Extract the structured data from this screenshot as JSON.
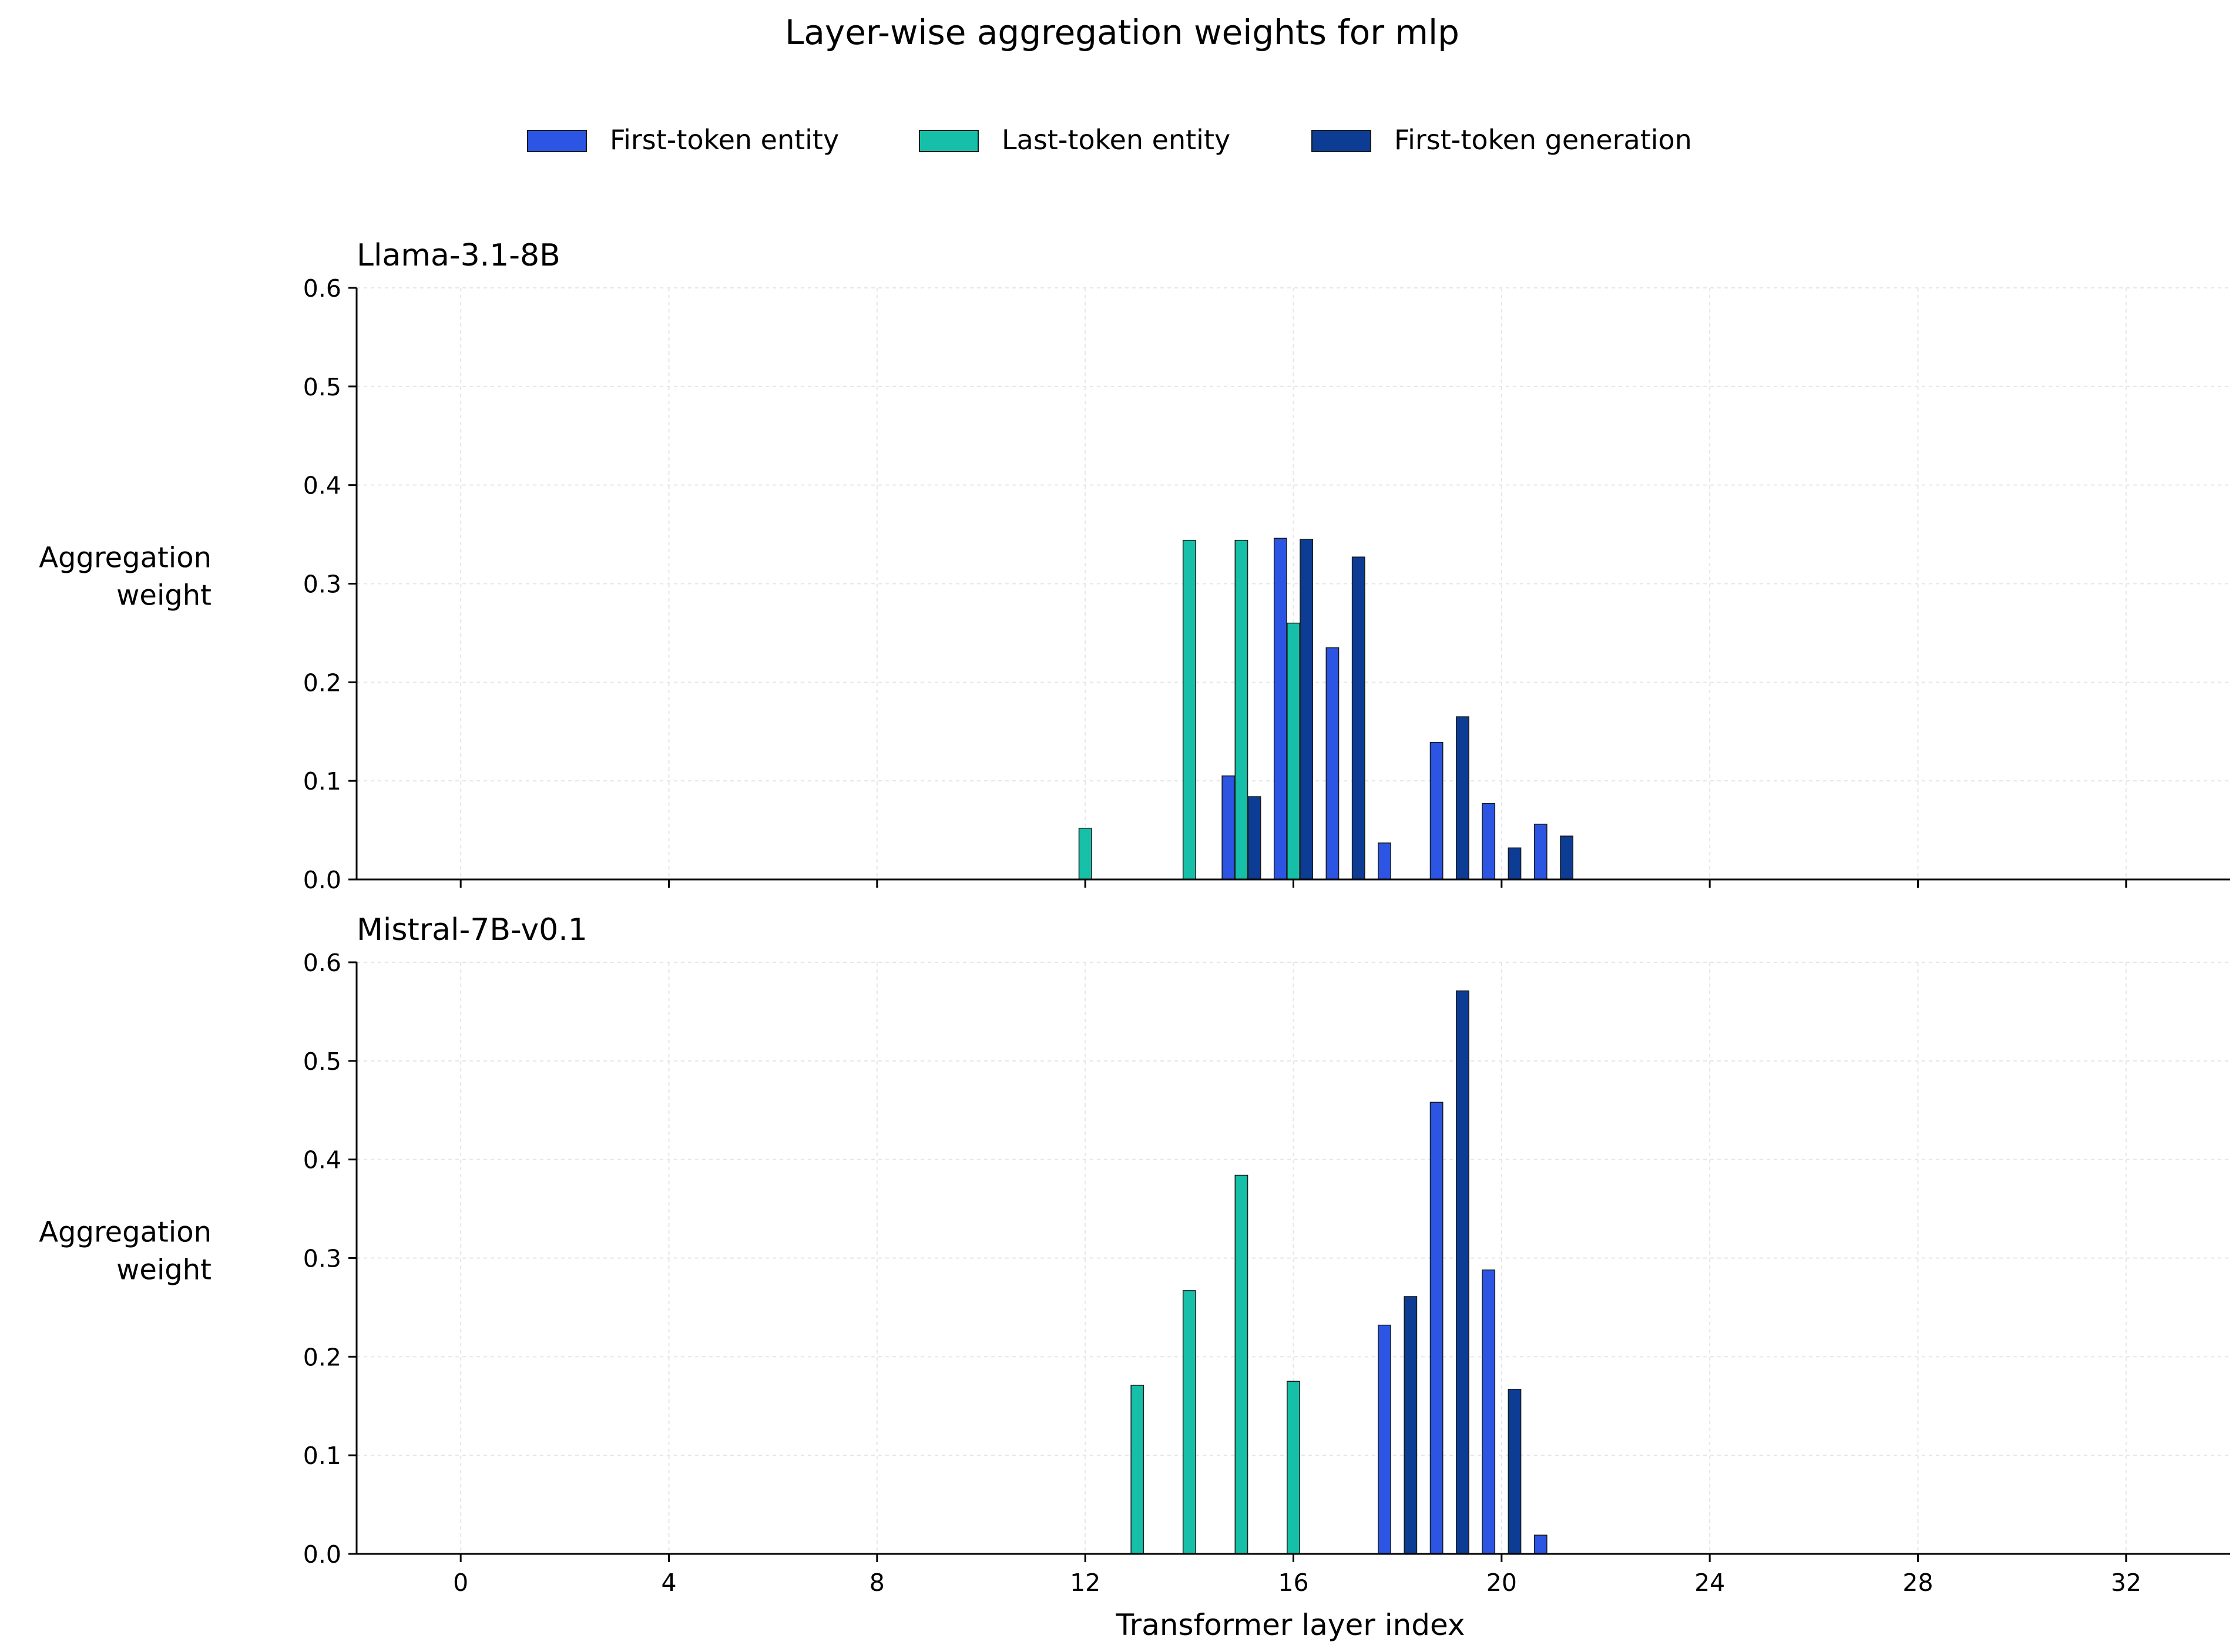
{
  "figure_title": "Layer-wise aggregation weights for mlp",
  "legend": [
    {
      "label": "First-token entity",
      "color": "#2b55e2"
    },
    {
      "label": "Last-token entity",
      "color": "#15bfa8"
    },
    {
      "label": "First-token generation",
      "color": "#0c3c94"
    }
  ],
  "colors": {
    "axis": "#000000",
    "grid": "#e6e6e6",
    "bar_edge": "#1a1a1a"
  },
  "chart_data": [
    {
      "type": "bar",
      "title": "Llama-3.1-8B",
      "ylabel": "Aggregation\nweight",
      "xlabel": "",
      "xlim": [
        -2,
        34
      ],
      "ylim": [
        0,
        0.6
      ],
      "xticks": [
        0,
        4,
        8,
        12,
        16,
        20,
        24,
        28,
        32
      ],
      "xtick_labels_shown": false,
      "yticks": [
        0.0,
        0.1,
        0.2,
        0.3,
        0.4,
        0.5,
        0.6
      ],
      "ytick_labels": [
        "0.0",
        "0.1",
        "0.2",
        "0.3",
        "0.4",
        "0.5",
        "0.6"
      ],
      "grid": true,
      "legend_placement": "top-center",
      "series": [
        {
          "name": "First-token entity",
          "x": [
            15,
            16,
            17,
            18,
            19,
            20,
            21
          ],
          "values": [
            0.105,
            0.346,
            0.235,
            0.037,
            0.139,
            0.077,
            0.056
          ]
        },
        {
          "name": "Last-token entity",
          "x": [
            12,
            14,
            15,
            16
          ],
          "values": [
            0.052,
            0.344,
            0.344,
            0.26
          ]
        },
        {
          "name": "First-token generation",
          "x": [
            15,
            16,
            17,
            19,
            20,
            21
          ],
          "values": [
            0.084,
            0.345,
            0.327,
            0.165,
            0.032,
            0.044
          ]
        }
      ]
    },
    {
      "type": "bar",
      "title": "Mistral-7B-v0.1",
      "ylabel": "Aggregation\nweight",
      "xlabel": "Transformer layer index",
      "xlim": [
        -2,
        34
      ],
      "ylim": [
        0,
        0.6
      ],
      "xticks": [
        0,
        4,
        8,
        12,
        16,
        20,
        24,
        28,
        32
      ],
      "xtick_labels_shown": true,
      "xtick_labels": [
        "0",
        "4",
        "8",
        "12",
        "16",
        "20",
        "24",
        "28",
        "32"
      ],
      "yticks": [
        0.0,
        0.1,
        0.2,
        0.3,
        0.4,
        0.5,
        0.6
      ],
      "ytick_labels": [
        "0.0",
        "0.1",
        "0.2",
        "0.3",
        "0.4",
        "0.5",
        "0.6"
      ],
      "grid": true,
      "series": [
        {
          "name": "First-token entity",
          "x": [
            18,
            19,
            20,
            21
          ],
          "values": [
            0.232,
            0.458,
            0.288,
            0.019
          ]
        },
        {
          "name": "Last-token entity",
          "x": [
            13,
            14,
            15,
            16
          ],
          "values": [
            0.171,
            0.267,
            0.384,
            0.175
          ]
        },
        {
          "name": "First-token generation",
          "x": [
            18,
            19,
            20
          ],
          "values": [
            0.261,
            0.571,
            0.167
          ]
        }
      ]
    }
  ]
}
